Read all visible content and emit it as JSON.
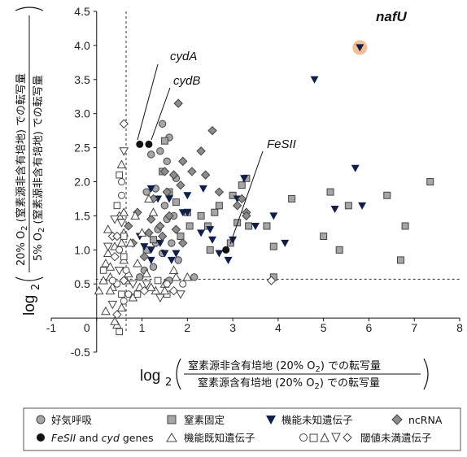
{
  "chart_data": {
    "type": "scatter",
    "title": "",
    "xlim": [
      -1,
      8
    ],
    "ylim": [
      -0.5,
      4.5
    ],
    "x_ticks": [
      "-1",
      "0",
      "1",
      "2",
      "3",
      "4",
      "5",
      "6",
      "7",
      "8"
    ],
    "y_ticks": [
      "-0.5",
      "0.5",
      "1.0",
      "1.5",
      "2.0",
      "2.5",
      "3.0",
      "3.5",
      "4.0",
      "4.5"
    ],
    "threshold_x": 0.65,
    "threshold_y": 0.57,
    "xlabel": {
      "log": "log",
      "sub": "2",
      "num_a": "窒素源非含有培地 (20% O",
      "num_b": "2",
      "num_c": ") での転写量",
      "den_a": "窒素源含有培地 (20% O",
      "den_b": "2",
      "den_c": ") での転写量"
    },
    "ylabel": {
      "log": "log",
      "sub": "2",
      "num_a": "20% O",
      "num_b": "2",
      "num_c": " (窒素源非含有培地) での転写量",
      "den_a": "5% O",
      "den_b": "2",
      "den_c": " (窒素源非含有培地) での転写量"
    },
    "annotations": {
      "nafU": "nafU",
      "cydA": "cydA",
      "cydB": "cydB",
      "FeSII": "FeSII"
    },
    "legend": {
      "aerobic": "好気呼吸",
      "fixation": "窒素固定",
      "unknown": "機能未知遺伝子",
      "ncrna": "ncRNA",
      "fesii_a": "FeSII",
      "fesii_b": " and ",
      "fesii_c": "cyd",
      "fesii_d": " genes",
      "known": "機能既知遺伝子",
      "below": "閾値未満遺伝子"
    },
    "colors": {
      "aerobic": "#a6a6a6",
      "fixation": "#a6a6a6",
      "unknown": "#0d1f4d",
      "ncrna": "#8c8c8c",
      "fesii": "#111111",
      "known": "#ffffff",
      "nafU_highlight": "#f5b27a"
    },
    "series": [
      {
        "name": "好気呼吸",
        "marker": "circle",
        "points": [
          [
            1.45,
            2.85
          ],
          [
            1.6,
            2.65
          ],
          [
            1.2,
            2.4
          ],
          [
            1.4,
            2.45
          ],
          [
            1.55,
            2.3
          ],
          [
            1.75,
            2.05
          ],
          [
            1.3,
            1.9
          ],
          [
            1.1,
            1.85
          ],
          [
            1.5,
            1.65
          ],
          [
            1.7,
            1.5
          ],
          [
            1.35,
            1.3
          ],
          [
            1.55,
            1.45
          ],
          [
            1.65,
            1.1
          ],
          [
            1.3,
            1.1
          ],
          [
            1.45,
            0.95
          ],
          [
            1.8,
            0.85
          ],
          [
            2.15,
            0.6
          ],
          [
            1.25,
            0.75
          ],
          [
            1.05,
            0.7
          ],
          [
            0.95,
            0.6
          ],
          [
            1.6,
            0.55
          ]
        ]
      },
      {
        "name": "窒素固定",
        "marker": "square",
        "points": [
          [
            1.5,
            2.6
          ],
          [
            1.45,
            2.15
          ],
          [
            1.6,
            1.85
          ],
          [
            1.75,
            1.7
          ],
          [
            2.0,
            1.55
          ],
          [
            2.05,
            1.35
          ],
          [
            1.85,
            1.2
          ],
          [
            2.3,
            1.5
          ],
          [
            2.45,
            1.35
          ],
          [
            2.6,
            1.55
          ],
          [
            2.7,
            1.65
          ],
          [
            3.0,
            1.8
          ],
          [
            3.2,
            1.95
          ],
          [
            3.3,
            2.05
          ],
          [
            3.1,
            1.4
          ],
          [
            2.95,
            1.1
          ],
          [
            2.5,
            1.0
          ],
          [
            3.35,
            1.35
          ],
          [
            3.9,
            1.05
          ],
          [
            3.75,
            1.35
          ],
          [
            4.3,
            1.75
          ],
          [
            5.0,
            1.2
          ],
          [
            5.35,
            1.0
          ],
          [
            5.15,
            1.85
          ],
          [
            5.55,
            1.65
          ],
          [
            6.4,
            1.8
          ],
          [
            6.8,
            1.35
          ],
          [
            7.35,
            2.0
          ],
          [
            6.7,
            0.85
          ],
          [
            3.9,
            0.6
          ],
          [
            1.25,
            1.15
          ],
          [
            1.1,
            1.0
          ]
        ]
      },
      {
        "name": "機能未知遺伝子",
        "marker": "triangle-down",
        "points": [
          [
            4.8,
            3.5
          ],
          [
            5.7,
            2.2
          ],
          [
            3.25,
            2.05
          ],
          [
            3.1,
            1.75
          ],
          [
            2.35,
            1.9
          ],
          [
            2.0,
            1.8
          ],
          [
            1.2,
            1.9
          ],
          [
            1.35,
            1.75
          ],
          [
            1.6,
            1.75
          ],
          [
            1.9,
            1.55
          ],
          [
            2.0,
            1.55
          ],
          [
            2.3,
            1.25
          ],
          [
            2.5,
            1.3
          ],
          [
            3.0,
            1.15
          ],
          [
            3.5,
            1.35
          ],
          [
            4.15,
            1.1
          ],
          [
            5.25,
            1.6
          ],
          [
            5.85,
            1.65
          ],
          [
            2.7,
            0.95
          ],
          [
            2.9,
            0.85
          ],
          [
            1.2,
            1.0
          ],
          [
            1.4,
            1.1
          ],
          [
            1.5,
            0.95
          ],
          [
            1.75,
            0.95
          ],
          [
            0.95,
            1.2
          ],
          [
            1.05,
            1.05
          ],
          [
            1.2,
            0.85
          ],
          [
            1.65,
            0.85
          ],
          [
            3.9,
            1.5
          ],
          [
            2.55,
            1.15
          ]
        ]
      },
      {
        "name": "ncRNA",
        "marker": "diamond",
        "points": [
          [
            1.8,
            3.15
          ],
          [
            2.55,
            2.75
          ],
          [
            2.3,
            2.45
          ],
          [
            1.9,
            2.3
          ],
          [
            2.1,
            2.15
          ],
          [
            1.85,
            1.95
          ],
          [
            2.4,
            2.1
          ],
          [
            2.7,
            1.85
          ],
          [
            3.2,
            1.75
          ],
          [
            3.3,
            1.55
          ],
          [
            3.1,
            1.65
          ],
          [
            1.7,
            2.1
          ],
          [
            1.5,
            2.15
          ],
          [
            1.55,
            1.85
          ],
          [
            1.25,
            1.75
          ],
          [
            1.6,
            1.5
          ],
          [
            1.4,
            1.35
          ],
          [
            1.75,
            1.3
          ],
          [
            1.2,
            1.45
          ],
          [
            0.9,
            1.55
          ],
          [
            1.15,
            1.25
          ],
          [
            1.45,
            1.2
          ],
          [
            1.9,
            1.1
          ],
          [
            0.7,
            1.35
          ],
          [
            0.8,
            1.1
          ],
          [
            1.05,
            0.9
          ],
          [
            3.3,
            1.5
          ]
        ]
      },
      {
        "name": "FeSII and cyd genes",
        "marker": "circle-black",
        "points": [
          [
            0.95,
            2.55
          ],
          [
            1.15,
            2.55
          ],
          [
            2.85,
            1.0
          ]
        ]
      },
      {
        "name": "機能既知遺伝子",
        "marker": "triangle-up",
        "points": [
          [
            0.2,
            0.8
          ],
          [
            0.3,
            0.6
          ],
          [
            0.05,
            0.4
          ],
          [
            0.2,
            0.1
          ],
          [
            0.45,
            -0.1
          ],
          [
            0.55,
            0.15
          ],
          [
            0.65,
            0.55
          ],
          [
            0.6,
            0.85
          ],
          [
            0.75,
            1.1
          ],
          [
            0.85,
            1.5
          ],
          [
            0.5,
            1.5
          ],
          [
            0.6,
            1.25
          ],
          [
            0.9,
            0.8
          ],
          [
            1.1,
            0.65
          ],
          [
            1.3,
            0.4
          ],
          [
            1.5,
            0.5
          ],
          [
            1.7,
            0.7
          ],
          [
            2.0,
            0.6
          ],
          [
            0.4,
            1.05
          ],
          [
            0.7,
            0.65
          ],
          [
            0.25,
            0.95
          ],
          [
            1.0,
            1.25
          ],
          [
            0.8,
            0.3
          ],
          [
            0.95,
            0.45
          ],
          [
            0.35,
            0.45
          ],
          [
            0.15,
            0.55
          ],
          [
            1.15,
            1.75
          ],
          [
            1.25,
            1.55
          ]
        ]
      },
      {
        "name": "閾値未満遺伝子",
        "marker": "mixed-open",
        "points": [
          [
            0.55,
            2.0
          ],
          [
            0.5,
            2.1
          ],
          [
            0.55,
            2.25
          ],
          [
            0.6,
            2.45
          ],
          [
            0.6,
            2.85
          ],
          [
            0.55,
            1.8
          ],
          [
            0.45,
            1.65
          ],
          [
            0.6,
            1.55
          ],
          [
            0.55,
            1.4
          ],
          [
            0.35,
            1.2
          ],
          [
            0.5,
            1.0
          ],
          [
            0.6,
            0.9
          ],
          [
            0.3,
            0.75
          ],
          [
            0.5,
            0.7
          ],
          [
            0.6,
            0.55
          ],
          [
            0.45,
            0.5
          ],
          [
            0.55,
            0.35
          ],
          [
            0.3,
            0.4
          ],
          [
            0.35,
            0.2
          ],
          [
            0.45,
            0.05
          ],
          [
            0.6,
            0.25
          ],
          [
            0.5,
            -0.2
          ],
          [
            0.55,
            1.1
          ],
          [
            0.25,
            1.05
          ],
          [
            0.4,
            0.9
          ],
          [
            0.35,
            0.55
          ],
          [
            0.6,
            1.2
          ],
          [
            0.25,
            1.3
          ],
          [
            0.4,
            1.45
          ],
          [
            0.45,
            1.2
          ],
          [
            0.65,
            0.7
          ],
          [
            0.15,
            0.7
          ],
          [
            0.4,
            -0.05
          ],
          [
            1.4,
            0.3
          ],
          [
            1.7,
            0.4
          ],
          [
            1.9,
            0.5
          ],
          [
            1.55,
            0.35
          ],
          [
            1.2,
            0.45
          ],
          [
            1.85,
            0.35
          ],
          [
            3.85,
            0.55
          ],
          [
            1.55,
            0.5
          ],
          [
            1.35,
            0.55
          ],
          [
            1.75,
            0.6
          ],
          [
            0.8,
            0.5
          ],
          [
            1.05,
            0.4
          ],
          [
            0.7,
            0.35
          ],
          [
            0.9,
            0.35
          ],
          [
            1.5,
            0.4
          ],
          [
            1.1,
            0.5
          ]
        ]
      },
      {
        "name": "nafU",
        "marker": "triangle-down-highlight",
        "points": [
          [
            5.8,
            3.97
          ]
        ]
      }
    ]
  }
}
